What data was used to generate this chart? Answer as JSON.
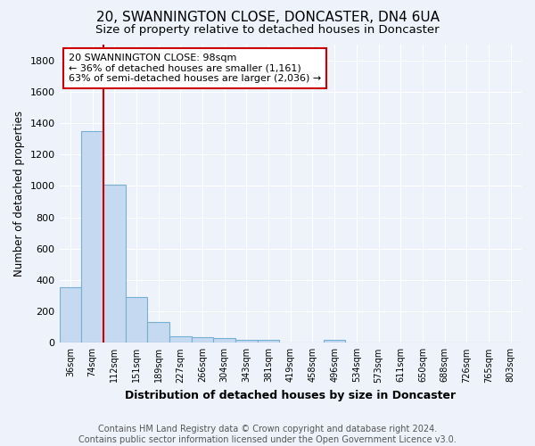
{
  "title1": "20, SWANNINGTON CLOSE, DONCASTER, DN4 6UA",
  "title2": "Size of property relative to detached houses in Doncaster",
  "xlabel": "Distribution of detached houses by size in Doncaster",
  "ylabel": "Number of detached properties",
  "footer": "Contains HM Land Registry data © Crown copyright and database right 2024.\nContains public sector information licensed under the Open Government Licence v3.0.",
  "bin_labels": [
    "36sqm",
    "74sqm",
    "112sqm",
    "151sqm",
    "189sqm",
    "227sqm",
    "266sqm",
    "304sqm",
    "343sqm",
    "381sqm",
    "419sqm",
    "458sqm",
    "496sqm",
    "534sqm",
    "573sqm",
    "611sqm",
    "650sqm",
    "688sqm",
    "726sqm",
    "765sqm",
    "803sqm"
  ],
  "bar_heights": [
    355,
    1350,
    1010,
    290,
    130,
    40,
    37,
    30,
    20,
    16,
    0,
    0,
    18,
    0,
    0,
    0,
    0,
    0,
    0,
    0,
    0
  ],
  "bar_color": "#c5d9f0",
  "bar_edge_color": "#7aafd4",
  "vline_x": 2.0,
  "annotation_text": "20 SWANNINGTON CLOSE: 98sqm\n← 36% of detached houses are smaller (1,161)\n63% of semi-detached houses are larger (2,036) →",
  "annotation_box_color": "#ffffff",
  "annotation_box_edge_color": "#cc0000",
  "vline_color": "#cc0000",
  "ylim": [
    0,
    1900
  ],
  "yticks": [
    0,
    200,
    400,
    600,
    800,
    1000,
    1200,
    1400,
    1600,
    1800
  ],
  "bg_color": "#edf2fb",
  "axes_bg_color": "#edf2fb",
  "grid_color": "#ffffff",
  "title1_fontsize": 11,
  "title2_fontsize": 9.5,
  "xlabel_fontsize": 9,
  "ylabel_fontsize": 8.5,
  "footer_fontsize": 7,
  "annot_fontsize": 8
}
